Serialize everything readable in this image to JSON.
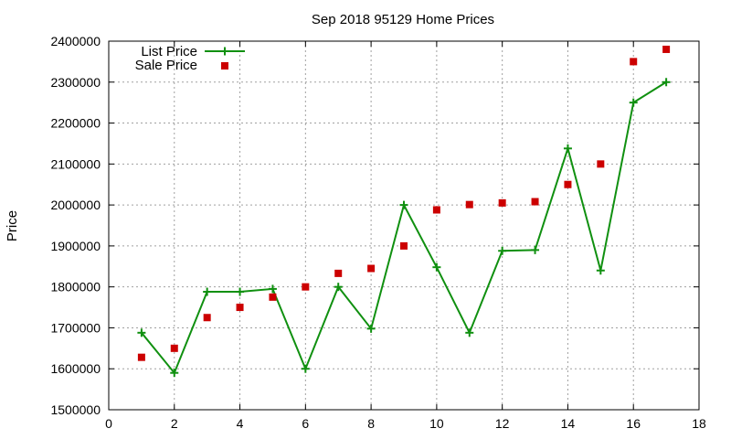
{
  "chart_data": {
    "type": "line",
    "title": "Sep 2018 95129 Home Prices",
    "xlabel": "",
    "ylabel": "Price",
    "xlim": [
      0,
      18
    ],
    "ylim": [
      1500000,
      2400000
    ],
    "xticks": [
      0,
      2,
      4,
      6,
      8,
      10,
      12,
      14,
      16,
      18
    ],
    "yticks": [
      1500000,
      1600000,
      1700000,
      1800000,
      1900000,
      2000000,
      2100000,
      2200000,
      2300000,
      2400000
    ],
    "grid": true,
    "legend": "top-left",
    "series": [
      {
        "name": "List Price",
        "style": "line-with-plus-markers",
        "color": "#109010",
        "x": [
          1,
          2,
          3,
          4,
          5,
          6,
          7,
          8,
          9,
          10,
          11,
          12,
          13,
          14,
          15,
          16,
          17
        ],
        "y": [
          1688000,
          1590000,
          1788000,
          1788000,
          1795000,
          1600000,
          1800000,
          1698000,
          2000000,
          1848000,
          1688000,
          1888000,
          1890000,
          2138000,
          1840000,
          2250000,
          2300000
        ]
      },
      {
        "name": "Sale Price",
        "style": "square-markers",
        "color": "#cc0000",
        "x": [
          1,
          2,
          3,
          4,
          5,
          6,
          7,
          8,
          9,
          10,
          11,
          12,
          13,
          14,
          15,
          16,
          17
        ],
        "y": [
          1628000,
          1650000,
          1725000,
          1750000,
          1775000,
          1800000,
          1833000,
          1845000,
          1900000,
          1988000,
          2001000,
          2005000,
          2008000,
          2050000,
          2100000,
          2350000,
          2380000
        ]
      }
    ]
  }
}
